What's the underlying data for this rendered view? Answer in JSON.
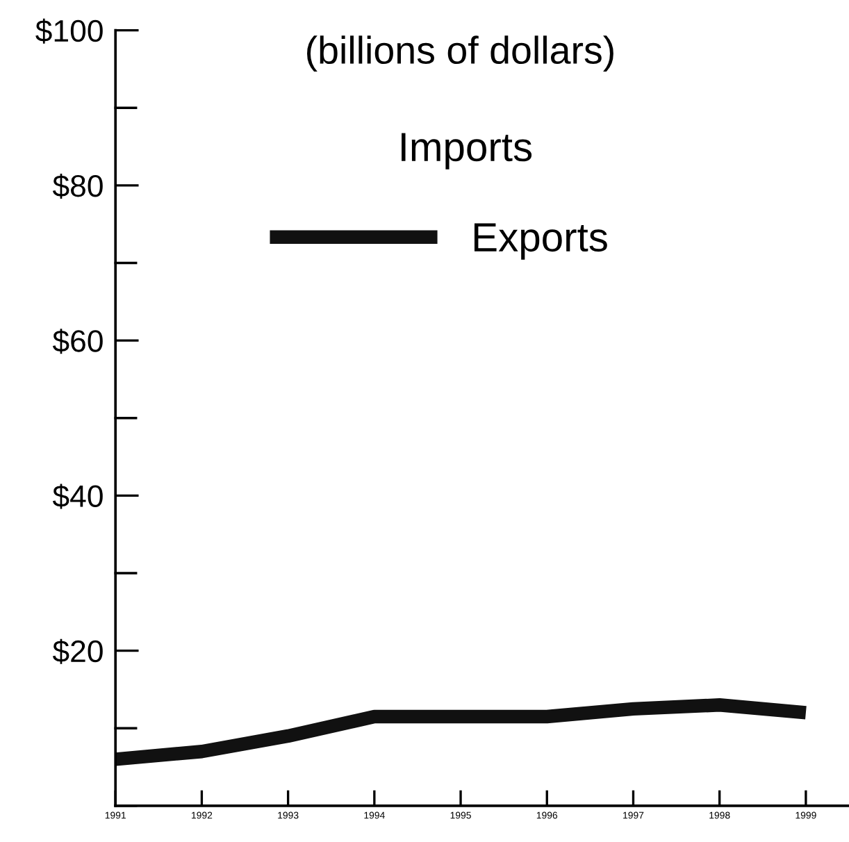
{
  "chart_data": {
    "type": "line",
    "title": "(billions of dollars)",
    "x": [
      1991,
      1992,
      1993,
      1994,
      1995,
      1996,
      1997,
      1998,
      1999
    ],
    "series": [
      {
        "name": "Exports",
        "color": "#111111",
        "values": [
          6,
          7,
          9,
          11.5,
          11.5,
          11.5,
          12.5,
          13,
          12
        ]
      }
    ],
    "xlim": [
      1991,
      1999.5
    ],
    "xticks": [
      1991,
      1992,
      1993,
      1994,
      1995,
      1996,
      1997,
      1998,
      1999
    ],
    "ylim": [
      0,
      100
    ],
    "yticks": [
      {
        "value": 0,
        "label": null
      },
      {
        "value": 10,
        "label": null
      },
      {
        "value": 20,
        "label": "$20"
      },
      {
        "value": 30,
        "label": null
      },
      {
        "value": 40,
        "label": "$40"
      },
      {
        "value": 50,
        "label": null
      },
      {
        "value": 60,
        "label": "$60"
      },
      {
        "value": 70,
        "label": null
      },
      {
        "value": 80,
        "label": "$80"
      },
      {
        "value": 90,
        "label": null
      },
      {
        "value": 100,
        "label": "$100"
      }
    ],
    "annotations": [
      "Imports"
    ],
    "legend": "top",
    "grid": false,
    "marker": "none",
    "line_style": "solid"
  }
}
